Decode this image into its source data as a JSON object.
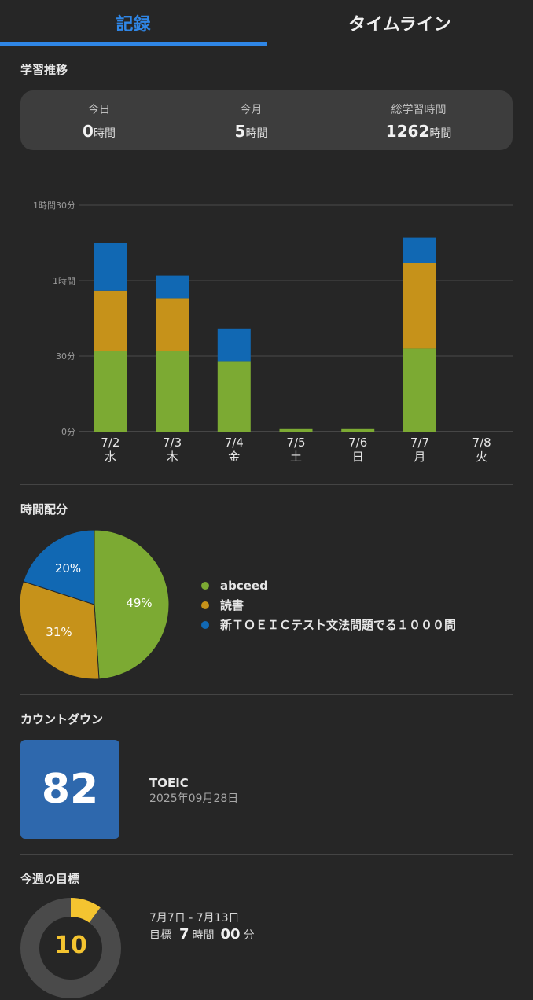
{
  "tabs": [
    {
      "label": "記録",
      "active": true
    },
    {
      "label": "タイムライン",
      "active": false
    }
  ],
  "colors": {
    "accent": "#2f86e6",
    "abceed": "#7caa33",
    "reading": "#c6921a",
    "grammar": "#1168b3",
    "goal": "#f4c430"
  },
  "study": {
    "title": "学習推移",
    "today": {
      "label": "今日",
      "value": "0",
      "unit": "時間"
    },
    "month": {
      "label": "今月",
      "value": "5",
      "unit": "時間"
    },
    "total": {
      "label": "総学習時間",
      "value": "1262",
      "unit": "時間"
    }
  },
  "chart_data": [
    {
      "type": "bar",
      "stacked": true,
      "title": "",
      "categories": [
        "7/2",
        "7/3",
        "7/4",
        "7/5",
        "7/6",
        "7/7",
        "7/8"
      ],
      "day_labels": [
        "水",
        "木",
        "金",
        "土",
        "日",
        "月",
        "火"
      ],
      "series": [
        {
          "name": "abceed",
          "color": "#7caa33",
          "values": [
            32,
            32,
            28,
            1,
            1,
            33,
            0
          ]
        },
        {
          "name": "読書",
          "color": "#c6921a",
          "values": [
            24,
            21,
            0,
            0,
            0,
            34,
            0
          ]
        },
        {
          "name": "新ＴＯＥＩＣテスト文法問題でる１０００問",
          "color": "#1168b3",
          "values": [
            19,
            9,
            13,
            0,
            0,
            10,
            0
          ]
        }
      ],
      "y_ticks": [
        {
          "value": 0,
          "label": "0分"
        },
        {
          "value": 30,
          "label": "30分"
        },
        {
          "value": 60,
          "label": "1時間"
        },
        {
          "value": 90,
          "label": "1時間30分"
        }
      ],
      "ylim": [
        0,
        90
      ],
      "grid": true
    },
    {
      "type": "pie",
      "title": "時間配分",
      "slices": [
        {
          "name": "abceed",
          "value": 49,
          "label": "49%",
          "color": "#7caa33"
        },
        {
          "name": "読書",
          "value": 31,
          "label": "31%",
          "color": "#c6921a"
        },
        {
          "name": "新ＴＯＥＩＣテスト文法問題でる１０００問",
          "value": 20,
          "label": "20%",
          "color": "#1168b3"
        }
      ],
      "legend_position": "right"
    }
  ],
  "countdown": {
    "title": "カウントダウン",
    "days": "82",
    "exam": "TOEIC",
    "date": "2025年09月28日"
  },
  "goal": {
    "title": "今週の目標",
    "ring_value": "10",
    "progress": 0.1,
    "range": "7月7日 - 7月13日",
    "target_label": "目標",
    "hours": "7",
    "hours_unit": "時間",
    "minutes": "00",
    "minutes_unit": "分"
  }
}
